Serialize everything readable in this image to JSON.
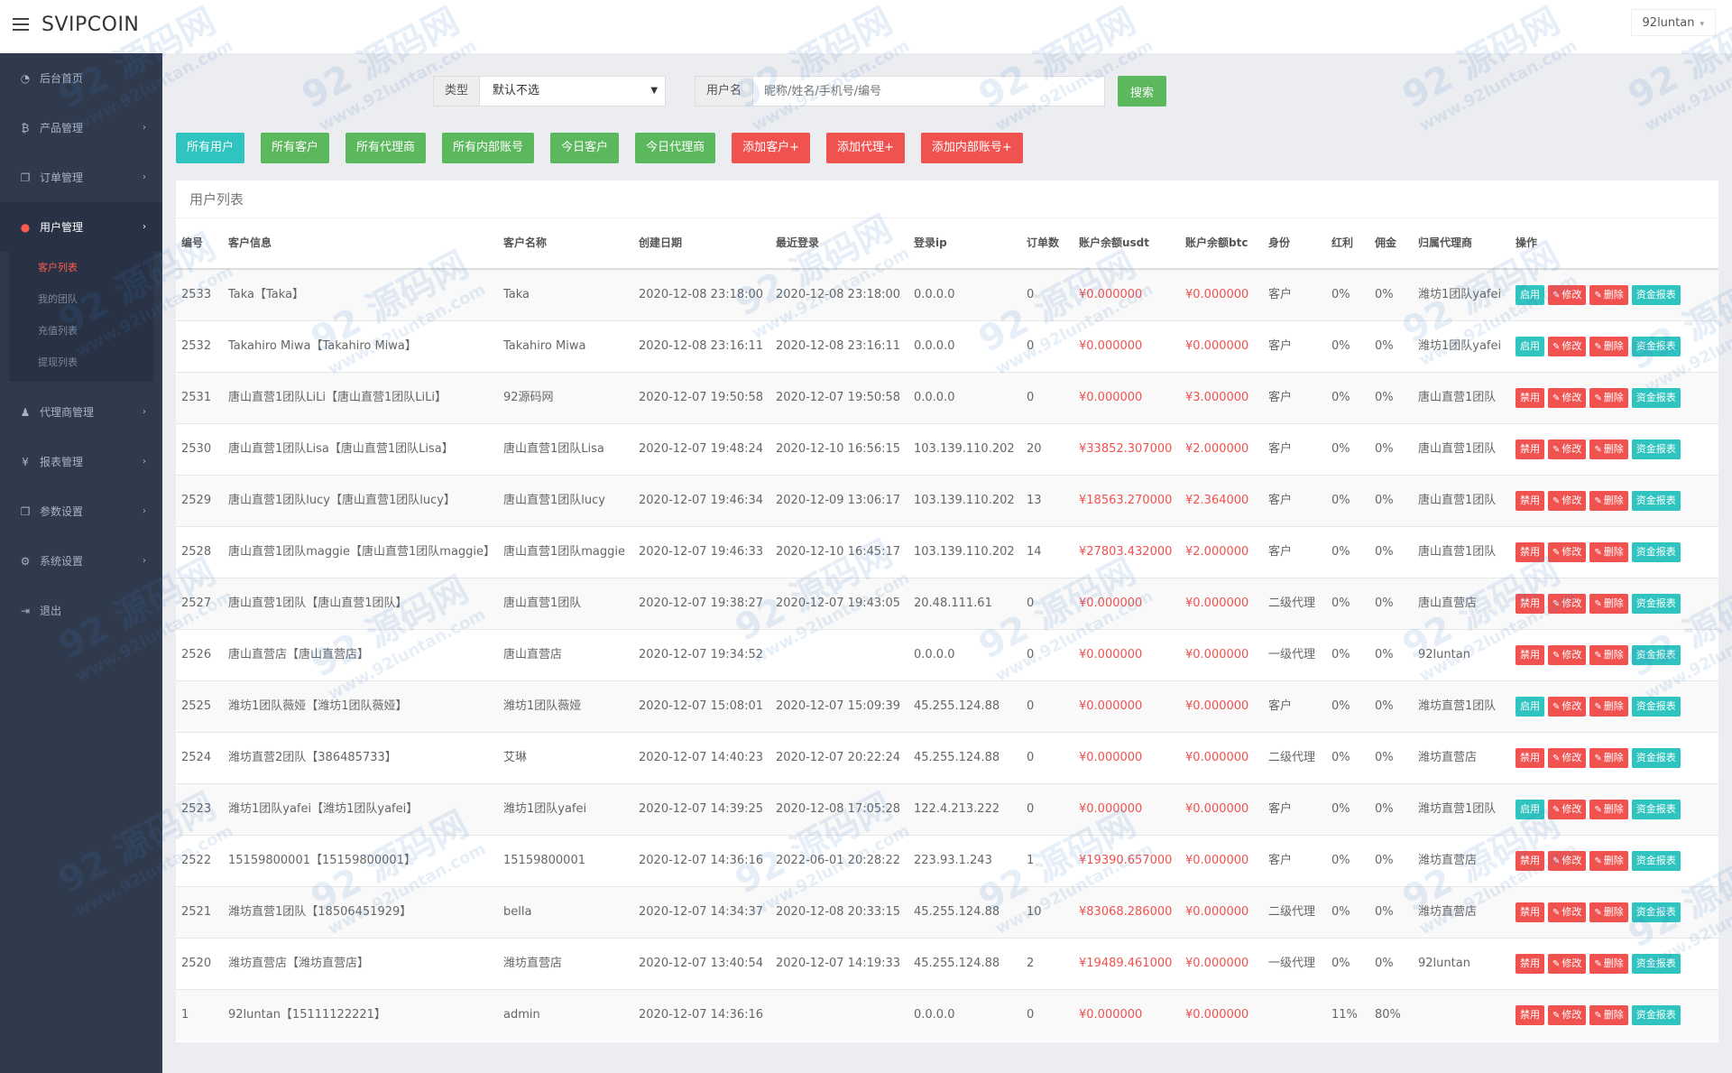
{
  "app": {
    "brand": "SVIPCOIN",
    "user": "92luntan"
  },
  "sidebar": {
    "items": [
      {
        "icon": "dashboard-icon",
        "glyph": "◔",
        "label": "后台首页",
        "arrow": ""
      },
      {
        "icon": "bitcoin-icon",
        "glyph": "₿",
        "label": "产品管理",
        "arrow": "›"
      },
      {
        "icon": "copy-icon",
        "glyph": "❐",
        "label": "订单管理",
        "arrow": "›"
      },
      {
        "icon": "user-icon",
        "glyph": "●",
        "label": "用户管理",
        "arrow": "›"
      },
      {
        "icon": "users-icon",
        "glyph": "♟",
        "label": "代理商管理",
        "arrow": "›"
      },
      {
        "icon": "yen-icon",
        "glyph": "¥",
        "label": "报表管理",
        "arrow": "›"
      },
      {
        "icon": "copy-icon",
        "glyph": "❐",
        "label": "参数设置",
        "arrow": "›"
      },
      {
        "icon": "cogs-icon",
        "glyph": "⚙",
        "label": "系统设置",
        "arrow": "›"
      },
      {
        "icon": "sign-out-icon",
        "glyph": "⇥",
        "label": "退出",
        "arrow": ""
      }
    ],
    "submenu": [
      "客户列表",
      "我的团队",
      "充值列表",
      "提现列表"
    ]
  },
  "search": {
    "type_label": "类型",
    "type_value": "默认不选",
    "user_label": "用户名",
    "user_placeholder": "昵称/姓名/手机号/编号",
    "search_button": "搜索"
  },
  "actions": [
    {
      "label": "所有用户",
      "color": "teal"
    },
    {
      "label": "所有客户",
      "color": "green"
    },
    {
      "label": "所有代理商",
      "color": "green"
    },
    {
      "label": "所有内部账号",
      "color": "green"
    },
    {
      "label": "今日客户",
      "color": "green"
    },
    {
      "label": "今日代理商",
      "color": "green"
    },
    {
      "label": "添加客户+",
      "color": "red"
    },
    {
      "label": "添加代理+",
      "color": "red"
    },
    {
      "label": "添加内部账号+",
      "color": "red"
    }
  ],
  "table": {
    "title": "用户列表",
    "headers": [
      "编号",
      "客户信息",
      "客户名称",
      "创建日期",
      "最近登录",
      "登录ip",
      "订单数",
      "账户余额usdt",
      "账户余额btc",
      "身份",
      "红利",
      "佣金",
      "归属代理商",
      "操作"
    ],
    "op_labels": {
      "enable": "启用",
      "disable": "禁用",
      "edit": "修改",
      "delete": "删除",
      "report": "资金报表"
    },
    "rows": [
      {
        "id": "2533",
        "info": "Taka【Taka】",
        "name": "Taka",
        "created": "2020-12-08 23:18:00",
        "login": "2020-12-08 23:18:00",
        "ip": "0.0.0.0",
        "orders": "0",
        "usdt": "¥0.000000",
        "btc": "¥0.000000",
        "role": "客户",
        "bonus": "0%",
        "commission": "0%",
        "agent": "潍坊1团队yafei",
        "status": "启用"
      },
      {
        "id": "2532",
        "info": "Takahiro Miwa【Takahiro Miwa】",
        "name": "Takahiro Miwa",
        "created": "2020-12-08 23:16:11",
        "login": "2020-12-08 23:16:11",
        "ip": "0.0.0.0",
        "orders": "0",
        "usdt": "¥0.000000",
        "btc": "¥0.000000",
        "role": "客户",
        "bonus": "0%",
        "commission": "0%",
        "agent": "潍坊1团队yafei",
        "status": "启用"
      },
      {
        "id": "2531",
        "info": "唐山直营1团队LiLi【唐山直营1团队LiLi】",
        "name": "92源码网",
        "created": "2020-12-07 19:50:58",
        "login": "2020-12-07 19:50:58",
        "ip": "0.0.0.0",
        "orders": "0",
        "usdt": "¥0.000000",
        "btc": "¥3.000000",
        "role": "客户",
        "bonus": "0%",
        "commission": "0%",
        "agent": "唐山直营1团队",
        "status": "禁用"
      },
      {
        "id": "2530",
        "info": "唐山直营1团队Lisa【唐山直营1团队Lisa】",
        "name": "唐山直营1团队Lisa",
        "created": "2020-12-07 19:48:24",
        "login": "2020-12-10 16:56:15",
        "ip": "103.139.110.202",
        "orders": "20",
        "usdt": "¥33852.307000",
        "btc": "¥2.000000",
        "role": "客户",
        "bonus": "0%",
        "commission": "0%",
        "agent": "唐山直营1团队",
        "status": "禁用"
      },
      {
        "id": "2529",
        "info": "唐山直营1团队lucy【唐山直营1团队lucy】",
        "name": "唐山直营1团队lucy",
        "created": "2020-12-07 19:46:34",
        "login": "2020-12-09 13:06:17",
        "ip": "103.139.110.202",
        "orders": "13",
        "usdt": "¥18563.270000",
        "btc": "¥2.364000",
        "role": "客户",
        "bonus": "0%",
        "commission": "0%",
        "agent": "唐山直营1团队",
        "status": "禁用"
      },
      {
        "id": "2528",
        "info": "唐山直营1团队maggie【唐山直营1团队maggie】",
        "name": "唐山直营1团队maggie",
        "created": "2020-12-07 19:46:33",
        "login": "2020-12-10 16:45:17",
        "ip": "103.139.110.202",
        "orders": "14",
        "usdt": "¥27803.432000",
        "btc": "¥2.000000",
        "role": "客户",
        "bonus": "0%",
        "commission": "0%",
        "agent": "唐山直营1团队",
        "status": "禁用"
      },
      {
        "id": "2527",
        "info": "唐山直营1团队【唐山直营1团队】",
        "name": "唐山直营1团队",
        "created": "2020-12-07 19:38:27",
        "login": "2020-12-07 19:43:05",
        "ip": "20.48.111.61",
        "orders": "0",
        "usdt": "¥0.000000",
        "btc": "¥0.000000",
        "role": "二级代理",
        "bonus": "0%",
        "commission": "0%",
        "agent": "唐山直营店",
        "status": "禁用"
      },
      {
        "id": "2526",
        "info": "唐山直营店【唐山直营店】",
        "name": "唐山直营店",
        "created": "2020-12-07 19:34:52",
        "login": "",
        "ip": "0.0.0.0",
        "orders": "0",
        "usdt": "¥0.000000",
        "btc": "¥0.000000",
        "role": "一级代理",
        "bonus": "0%",
        "commission": "0%",
        "agent": "92luntan",
        "status": "禁用"
      },
      {
        "id": "2525",
        "info": "潍坊1团队薇娅【潍坊1团队薇娅】",
        "name": "潍坊1团队薇娅",
        "created": "2020-12-07 15:08:01",
        "login": "2020-12-07 15:09:39",
        "ip": "45.255.124.88",
        "orders": "0",
        "usdt": "¥0.000000",
        "btc": "¥0.000000",
        "role": "客户",
        "bonus": "0%",
        "commission": "0%",
        "agent": "潍坊直营1团队",
        "status": "启用"
      },
      {
        "id": "2524",
        "info": "潍坊直营2团队【386485733】",
        "name": "艾琳",
        "created": "2020-12-07 14:40:23",
        "login": "2020-12-07 20:22:24",
        "ip": "45.255.124.88",
        "orders": "0",
        "usdt": "¥0.000000",
        "btc": "¥0.000000",
        "role": "二级代理",
        "bonus": "0%",
        "commission": "0%",
        "agent": "潍坊直营店",
        "status": "禁用"
      },
      {
        "id": "2523",
        "info": "潍坊1团队yafei【潍坊1团队yafei】",
        "name": "潍坊1团队yafei",
        "created": "2020-12-07 14:39:25",
        "login": "2020-12-08 17:05:28",
        "ip": "122.4.213.222",
        "orders": "0",
        "usdt": "¥0.000000",
        "btc": "¥0.000000",
        "role": "客户",
        "bonus": "0%",
        "commission": "0%",
        "agent": "潍坊直营1团队",
        "status": "启用"
      },
      {
        "id": "2522",
        "info": "15159800001【15159800001】",
        "name": "15159800001",
        "created": "2020-12-07 14:36:16",
        "login": "2022-06-01 20:28:22",
        "ip": "223.93.1.243",
        "orders": "1",
        "usdt": "¥19390.657000",
        "btc": "¥0.000000",
        "role": "客户",
        "bonus": "0%",
        "commission": "0%",
        "agent": "潍坊直营店",
        "status": "禁用"
      },
      {
        "id": "2521",
        "info": "潍坊直营1团队【18506451929】",
        "name": "bella",
        "created": "2020-12-07 14:34:37",
        "login": "2020-12-08 20:33:15",
        "ip": "45.255.124.88",
        "orders": "10",
        "usdt": "¥83068.286000",
        "btc": "¥0.000000",
        "role": "二级代理",
        "bonus": "0%",
        "commission": "0%",
        "agent": "潍坊直营店",
        "status": "禁用"
      },
      {
        "id": "2520",
        "info": "潍坊直营店【潍坊直营店】",
        "name": "潍坊直营店",
        "created": "2020-12-07 13:40:54",
        "login": "2020-12-07 14:19:33",
        "ip": "45.255.124.88",
        "orders": "2",
        "usdt": "¥19489.461000",
        "btc": "¥0.000000",
        "role": "一级代理",
        "bonus": "0%",
        "commission": "0%",
        "agent": "92luntan",
        "status": "禁用"
      },
      {
        "id": "1",
        "info": "92luntan【15111122221】",
        "name": "admin",
        "created": "2020-12-07 14:36:16",
        "login": "",
        "ip": "0.0.0.0",
        "orders": "0",
        "usdt": "¥0.000000",
        "btc": "¥0.000000",
        "role": "",
        "bonus": "11%",
        "commission": "80%",
        "agent": "",
        "status": "禁用"
      }
    ]
  },
  "watermark": {
    "big": "92 源码网",
    "small": "www.92luntan.com"
  },
  "colors": {
    "sidebar": "#2f3a4c",
    "teal": "#2fc4bf",
    "green": "#5cb85c",
    "red": "#f0524f",
    "accent": "#ff5a4e"
  }
}
